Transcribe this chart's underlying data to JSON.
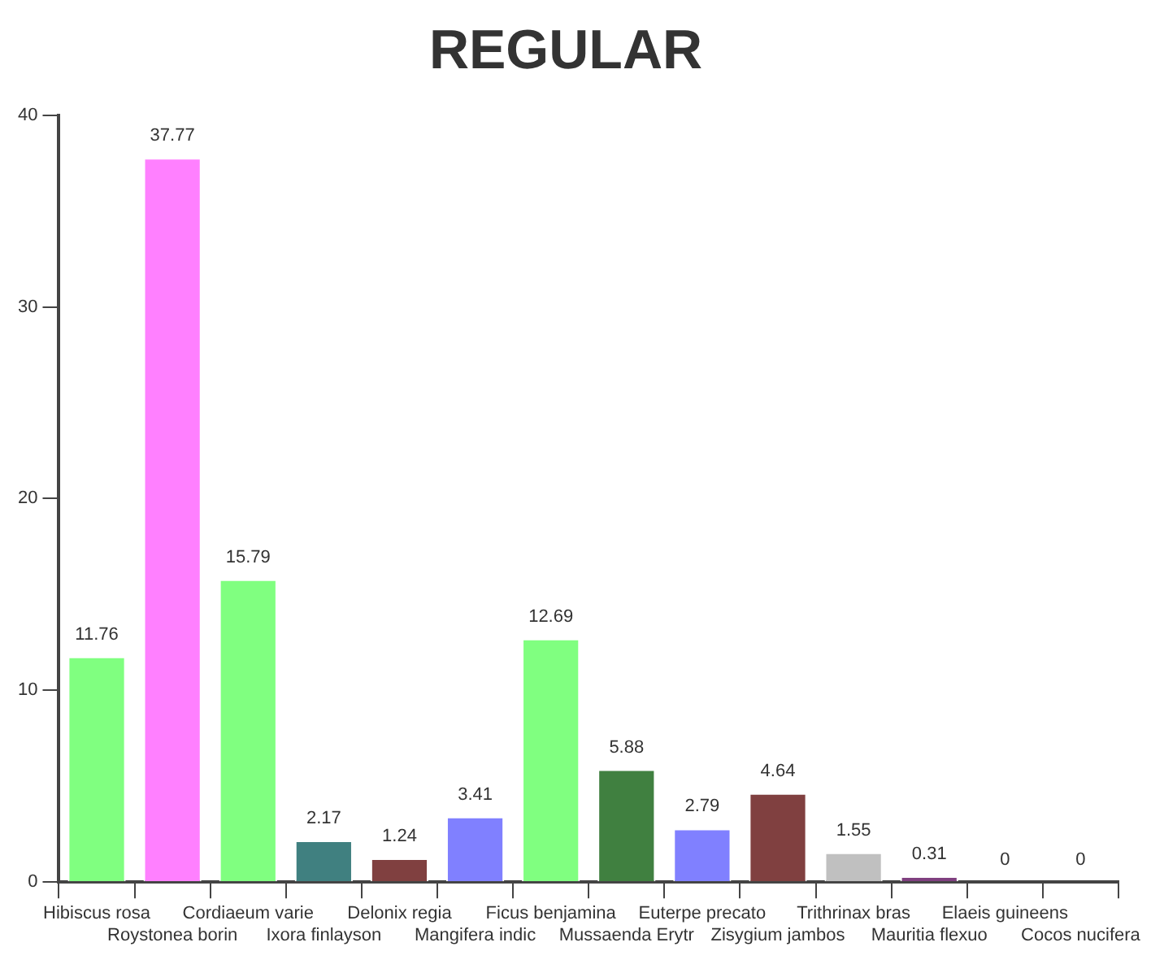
{
  "chart_data": {
    "type": "bar",
    "title": "REGULAR",
    "categories": [
      "Hibiscus rosa",
      "Roystonea borin",
      "Cordiaeum varie",
      "Ixora finlayson",
      "Delonix regia",
      "Mangifera indic",
      "Ficus benjamina",
      "Mussaenda Erytr",
      "Euterpe precato",
      "Zisygium jambos",
      "Trithrinax bras",
      "Mauritia flexuo",
      "Elaeis guineens",
      "Cocos nucifera"
    ],
    "values": [
      11.76,
      37.77,
      15.79,
      2.17,
      1.24,
      3.41,
      12.69,
      5.88,
      2.79,
      4.64,
      1.55,
      0.31,
      0,
      0
    ],
    "colors": [
      "#80ff80",
      "#ff80ff",
      "#80ff80",
      "#408080",
      "#804040",
      "#8080ff",
      "#80ff80",
      "#408040",
      "#8080ff",
      "#804040",
      "#c0c0c0",
      "#804080",
      "#80ff80",
      "#80ff80"
    ],
    "ylim": [
      0,
      40
    ],
    "yticks": [
      0,
      10,
      20,
      30,
      40
    ],
    "grid": false,
    "legend": false,
    "data_labels": true
  }
}
